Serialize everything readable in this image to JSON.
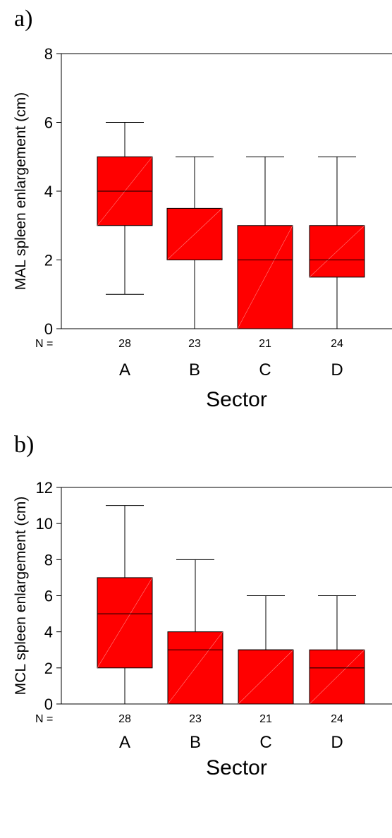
{
  "panels": [
    {
      "letter": "a)"
    },
    {
      "letter": "b)"
    }
  ],
  "chart_data": [
    {
      "type": "boxplot",
      "title": "",
      "ylabel": "MAL spleen enlargement (cm)",
      "xlabel": "Sector",
      "ylim": [
        0,
        8
      ],
      "yticks": [
        0,
        2,
        4,
        6,
        8
      ],
      "grid": false,
      "n_label": "N =",
      "box_color": "#ff0000",
      "categories": [
        "A",
        "B",
        "C",
        "D"
      ],
      "n": [
        28,
        23,
        21,
        24
      ],
      "boxes": [
        {
          "category": "A",
          "min": 1,
          "q1": 3,
          "median": 4,
          "q3": 5,
          "max": 6
        },
        {
          "category": "B",
          "min": 0,
          "q1": 2,
          "median": 2,
          "q3": 3.5,
          "max": 5
        },
        {
          "category": "C",
          "min": 0,
          "q1": 0,
          "median": 2,
          "q3": 3,
          "max": 5
        },
        {
          "category": "D",
          "min": 0,
          "q1": 1.5,
          "median": 2,
          "q3": 3,
          "max": 5
        }
      ]
    },
    {
      "type": "boxplot",
      "title": "",
      "ylabel": "MCL spleen enlargement (cm)",
      "xlabel": "Sector",
      "ylim": [
        0,
        12
      ],
      "yticks": [
        0,
        2,
        4,
        6,
        8,
        10,
        12
      ],
      "grid": false,
      "n_label": "N =",
      "box_color": "#ff0000",
      "categories": [
        "A",
        "B",
        "C",
        "D"
      ],
      "n": [
        28,
        23,
        21,
        24
      ],
      "boxes": [
        {
          "category": "A",
          "min": 0,
          "q1": 2,
          "median": 5,
          "q3": 7,
          "max": 11
        },
        {
          "category": "B",
          "min": 0,
          "q1": 0,
          "median": 3,
          "q3": 4,
          "max": 8
        },
        {
          "category": "C",
          "min": 0,
          "q1": 0,
          "median": 3,
          "q3": 3,
          "max": 6
        },
        {
          "category": "D",
          "min": 0,
          "q1": 0,
          "median": 2,
          "q3": 3,
          "max": 6
        }
      ]
    }
  ]
}
